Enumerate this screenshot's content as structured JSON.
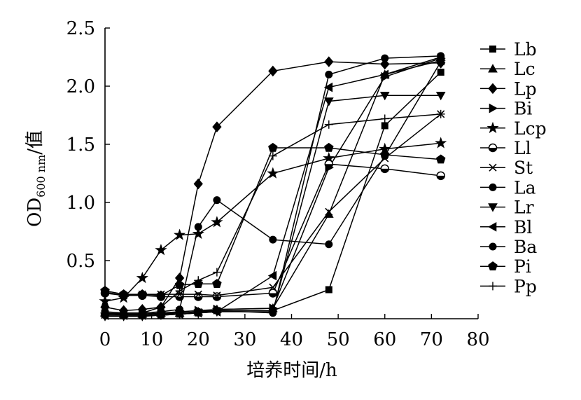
{
  "chart_data": {
    "type": "line",
    "title": "",
    "xlabel": "培养时间/h",
    "ylabel": {
      "main": "OD",
      "subscript": "600 nm",
      "suffix": "/值"
    },
    "xlim": [
      0,
      80
    ],
    "ylim": [
      0,
      2.5
    ],
    "x_ticks": [
      "0",
      "10",
      "20",
      "30",
      "40",
      "50",
      "60",
      "70",
      "80"
    ],
    "y_ticks": [
      "0.5",
      "1.0",
      "1.5",
      "2.0",
      "2.5"
    ],
    "grid": false,
    "legend_position": "right",
    "x": [
      0,
      4,
      8,
      12,
      16,
      20,
      24,
      36,
      48,
      60,
      72
    ],
    "series": [
      {
        "name": "Lb",
        "marker": "square",
        "values": [
          0.05,
          0.03,
          0.03,
          0.03,
          0.04,
          0.05,
          0.07,
          0.07,
          0.25,
          1.66,
          2.12
        ]
      },
      {
        "name": "Lc",
        "marker": "triangle-up",
        "values": [
          0.05,
          0.04,
          0.04,
          0.05,
          0.05,
          0.06,
          0.08,
          0.09,
          0.9,
          2.1,
          2.25
        ]
      },
      {
        "name": "Lp",
        "marker": "diamond",
        "values": [
          0.1,
          0.07,
          0.08,
          0.1,
          0.35,
          1.16,
          1.65,
          2.13,
          2.21,
          2.19,
          2.2
        ]
      },
      {
        "name": "Bi",
        "marker": "triangle-right",
        "values": [
          0.04,
          0.04,
          0.04,
          0.05,
          0.06,
          0.07,
          0.08,
          0.09,
          1.3,
          2.08,
          2.24
        ]
      },
      {
        "name": "Lcp",
        "marker": "star",
        "values": [
          0.15,
          0.18,
          0.35,
          0.59,
          0.72,
          0.73,
          0.83,
          1.25,
          1.38,
          1.46,
          1.51
        ]
      },
      {
        "name": "Ll",
        "marker": "circle-half",
        "values": [
          0.22,
          0.2,
          0.2,
          0.19,
          0.19,
          0.19,
          0.19,
          0.22,
          1.33,
          1.29,
          1.23
        ]
      },
      {
        "name": "St",
        "marker": "x",
        "values": [
          0.23,
          0.2,
          0.21,
          0.21,
          0.21,
          0.21,
          0.2,
          0.27,
          0.92,
          1.38,
          1.76
        ]
      },
      {
        "name": "La",
        "marker": "circle",
        "values": [
          0.03,
          0.03,
          0.03,
          0.04,
          0.05,
          0.06,
          0.07,
          0.05,
          2.1,
          2.24,
          2.26
        ]
      },
      {
        "name": "Lr",
        "marker": "triangle-down",
        "values": [
          0.02,
          0.02,
          0.02,
          0.03,
          0.04,
          0.05,
          0.06,
          0.06,
          1.87,
          1.92,
          1.92
        ]
      },
      {
        "name": "Bl",
        "marker": "triangle-left",
        "values": [
          0.03,
          0.03,
          0.03,
          0.04,
          0.04,
          0.05,
          0.06,
          0.37,
          1.99,
          2.1,
          2.22
        ]
      },
      {
        "name": "Ba",
        "marker": "circle",
        "values": [
          0.06,
          0.05,
          0.05,
          0.06,
          0.08,
          0.79,
          1.02,
          0.68,
          0.64,
          1.4,
          2.21
        ]
      },
      {
        "name": "Pi",
        "marker": "pentagon",
        "values": [
          0.24,
          0.21,
          0.21,
          0.2,
          0.29,
          0.3,
          0.3,
          1.47,
          1.47,
          1.41,
          1.37
        ]
      },
      {
        "name": "Pp",
        "marker": "plus",
        "values": [
          0.04,
          0.05,
          0.05,
          0.1,
          0.24,
          0.33,
          0.4,
          1.4,
          1.67,
          1.72,
          1.76
        ]
      }
    ]
  }
}
